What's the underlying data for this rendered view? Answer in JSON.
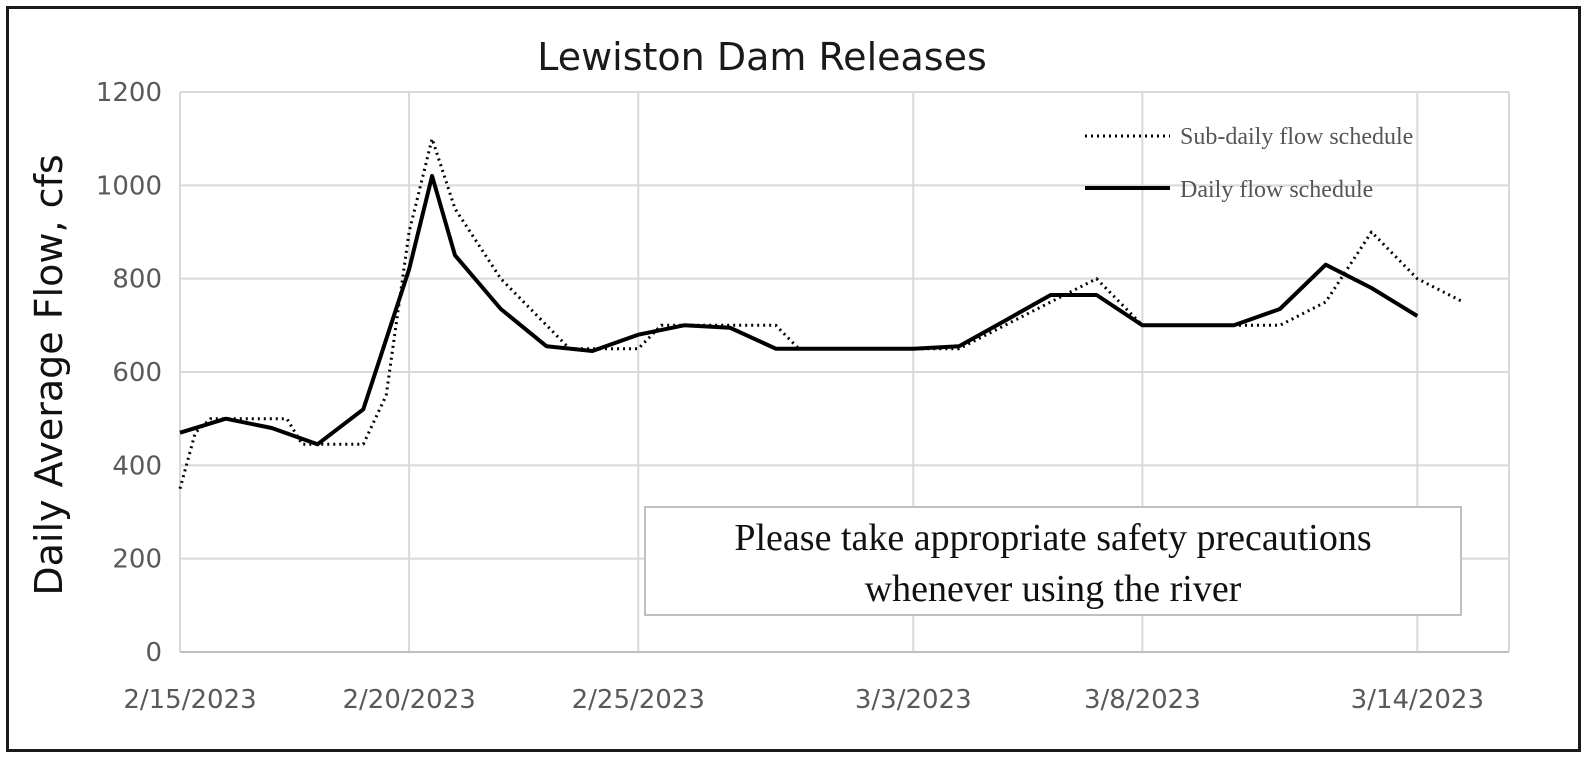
{
  "chart_data": {
    "type": "line",
    "title": "Lewiston Dam Releases",
    "ylabel": "Daily Average Flow, cfs",
    "xlabel": "",
    "ylim": [
      0,
      1200
    ],
    "y_ticks": [
      0,
      200,
      400,
      600,
      800,
      1000,
      1200
    ],
    "x_range": [
      "2/15/2023",
      "3/16/2023"
    ],
    "x_ticks": [
      "2/15/2023",
      "2/20/2023",
      "2/25/2023",
      "3/3/2023",
      "3/8/2023",
      "3/14/2023"
    ],
    "grid": true,
    "legend_position": "top-right",
    "series": [
      {
        "name": "Sub-daily flow schedule",
        "style": "dotted",
        "color": "#000000",
        "points": [
          [
            "2/15/2023",
            350
          ],
          [
            "2/15/2023",
            470
          ],
          [
            "2/15/2023",
            500
          ],
          [
            "2/17/2023",
            500
          ],
          [
            "2/17/2023",
            500
          ],
          [
            "2/17/2023",
            445
          ],
          [
            "2/19/2023",
            445
          ],
          [
            "2/19/2023",
            550
          ],
          [
            "2/20/2023",
            900
          ],
          [
            "2/20/2023",
            1100
          ],
          [
            "2/21/2023",
            950
          ],
          [
            "2/22/2023",
            800
          ],
          [
            "2/23/2023",
            700
          ],
          [
            "2/23/2023",
            650
          ],
          [
            "2/25/2023",
            650
          ],
          [
            "2/25/2023",
            700
          ],
          [
            "2/28/2023",
            700
          ],
          [
            "2/28/2023",
            650
          ],
          [
            "3/3/2023",
            650
          ],
          [
            "3/4/2023",
            650
          ],
          [
            "3/5/2023",
            700
          ],
          [
            "3/6/2023",
            750
          ],
          [
            "3/7/2023",
            800
          ],
          [
            "3/7/2023",
            750
          ],
          [
            "3/8/2023",
            700
          ],
          [
            "3/11/2023",
            700
          ],
          [
            "3/12/2023",
            750
          ],
          [
            "3/13/2023",
            900
          ],
          [
            "3/14/2023",
            800
          ],
          [
            "3/15/2023",
            750
          ]
        ]
      },
      {
        "name": "Daily flow schedule",
        "style": "solid",
        "color": "#000000",
        "points": [
          [
            "2/15/2023",
            470
          ],
          [
            "2/16/2023",
            500
          ],
          [
            "2/17/2023",
            480
          ],
          [
            "2/18/2023",
            445
          ],
          [
            "2/19/2023",
            520
          ],
          [
            "2/20/2023",
            820
          ],
          [
            "2/20/2023",
            1020
          ],
          [
            "2/21/2023",
            850
          ],
          [
            "2/22/2023",
            735
          ],
          [
            "2/23/2023",
            655
          ],
          [
            "2/24/2023",
            645
          ],
          [
            "2/25/2023",
            680
          ],
          [
            "2/26/2023",
            700
          ],
          [
            "2/27/2023",
            695
          ],
          [
            "2/28/2023",
            650
          ],
          [
            "3/1/2023",
            650
          ],
          [
            "3/2/2023",
            650
          ],
          [
            "3/3/2023",
            650
          ],
          [
            "3/4/2023",
            655
          ],
          [
            "3/5/2023",
            710
          ],
          [
            "3/6/2023",
            765
          ],
          [
            "3/7/2023",
            765
          ],
          [
            "3/8/2023",
            700
          ],
          [
            "3/9/2023",
            700
          ],
          [
            "3/10/2023",
            700
          ],
          [
            "3/11/2023",
            735
          ],
          [
            "3/12/2023",
            830
          ],
          [
            "3/13/2023",
            780
          ],
          [
            "3/14/2023",
            720
          ]
        ]
      }
    ],
    "annotation": {
      "line1": "Please take appropriate safety precautions",
      "line2": "whenever using the river"
    }
  }
}
